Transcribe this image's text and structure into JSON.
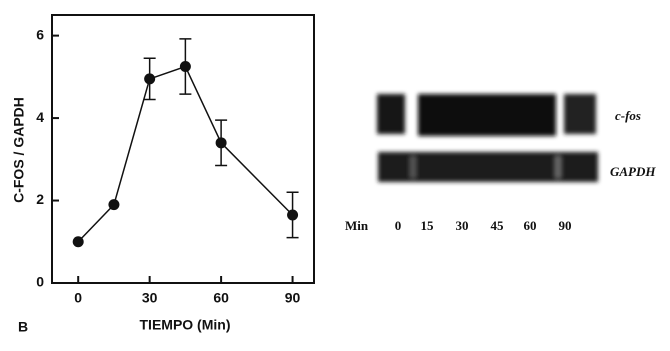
{
  "chart_data": {
    "type": "line",
    "x": [
      0,
      15,
      30,
      45,
      60,
      90
    ],
    "values": [
      1.0,
      1.9,
      4.95,
      5.25,
      3.4,
      1.65
    ],
    "errors": [
      null,
      null,
      0.5,
      0.67,
      0.55,
      0.55
    ],
    "xlim": [
      -11,
      99
    ],
    "ylim": [
      0,
      6.5
    ],
    "xticks": [
      0,
      30,
      60,
      90
    ],
    "yticks": [
      0,
      2,
      4,
      6
    ],
    "x_label": "TIEMPO (Min)",
    "y_label": "C-FOS / GAPDH",
    "color": "#111111"
  },
  "panel_label": "B",
  "blot": {
    "bands": [
      "c-fos",
      "GAPDH"
    ],
    "lane_title": "Min",
    "lanes": [
      "0",
      "15",
      "30",
      "45",
      "60",
      "90"
    ]
  }
}
